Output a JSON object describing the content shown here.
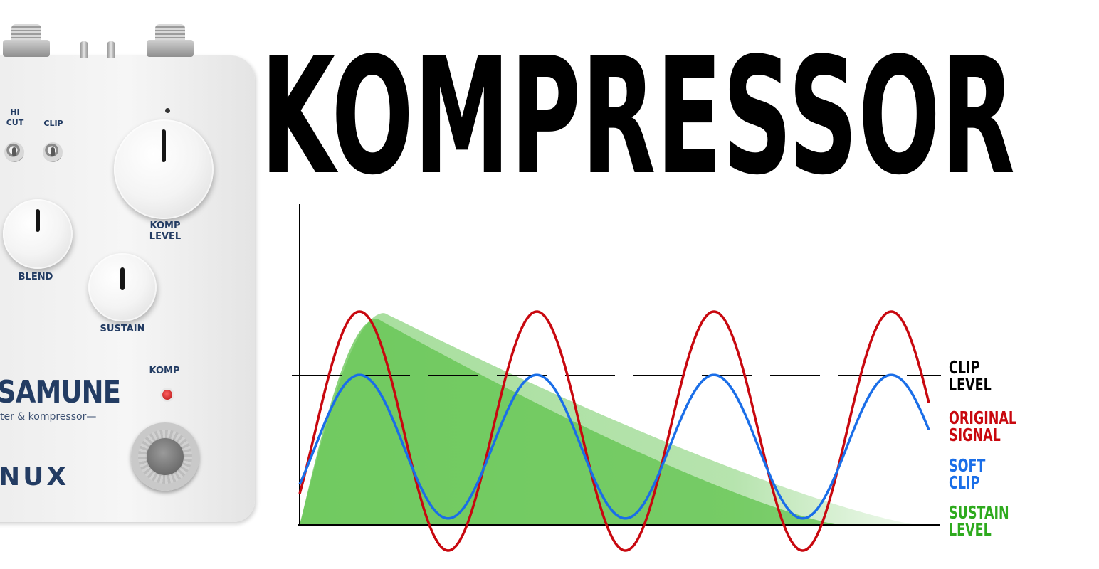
{
  "title": "KOMPRESSOR",
  "pedal": {
    "switch_hi_cut": "HI\nCUT",
    "switch_clip": "CLIP",
    "knob_komp_level": "KOMP\nLEVEL",
    "knob_blend": "BLEND",
    "knob_sustain": "SUSTAIN",
    "led_label": "KOMP",
    "name": "SAMUNE",
    "tagline": "ter & kompressor—",
    "brand": "NUX"
  },
  "legend": {
    "clip_level": "CLIP\nLEVEL",
    "original_signal": "ORIGINAL\nSIGNAL",
    "soft_clip": "SOFT\nCLIP",
    "sustain_level": "SUSTAIN\nLEVEL"
  },
  "colors": {
    "original_signal": "#c8080f",
    "soft_clip": "#1a6ee8",
    "sustain_fill": "#5dc24a",
    "sustain_text": "#2eaa1e",
    "clip_line": "#000000",
    "pedal_text": "#233c63",
    "led": "#d01515"
  },
  "chart_data": {
    "type": "line",
    "cycles": 4,
    "series": [
      {
        "name": "ORIGINAL SIGNAL",
        "shape": "sine",
        "amplitude_ratio": 1.0
      },
      {
        "name": "SOFT CLIP",
        "shape": "sine",
        "amplitude_ratio": 0.6
      },
      {
        "name": "SUSTAIN LEVEL",
        "shape": "envelope-area"
      }
    ],
    "reference_lines": [
      {
        "name": "CLIP LEVEL",
        "style": "dashed"
      }
    ]
  }
}
